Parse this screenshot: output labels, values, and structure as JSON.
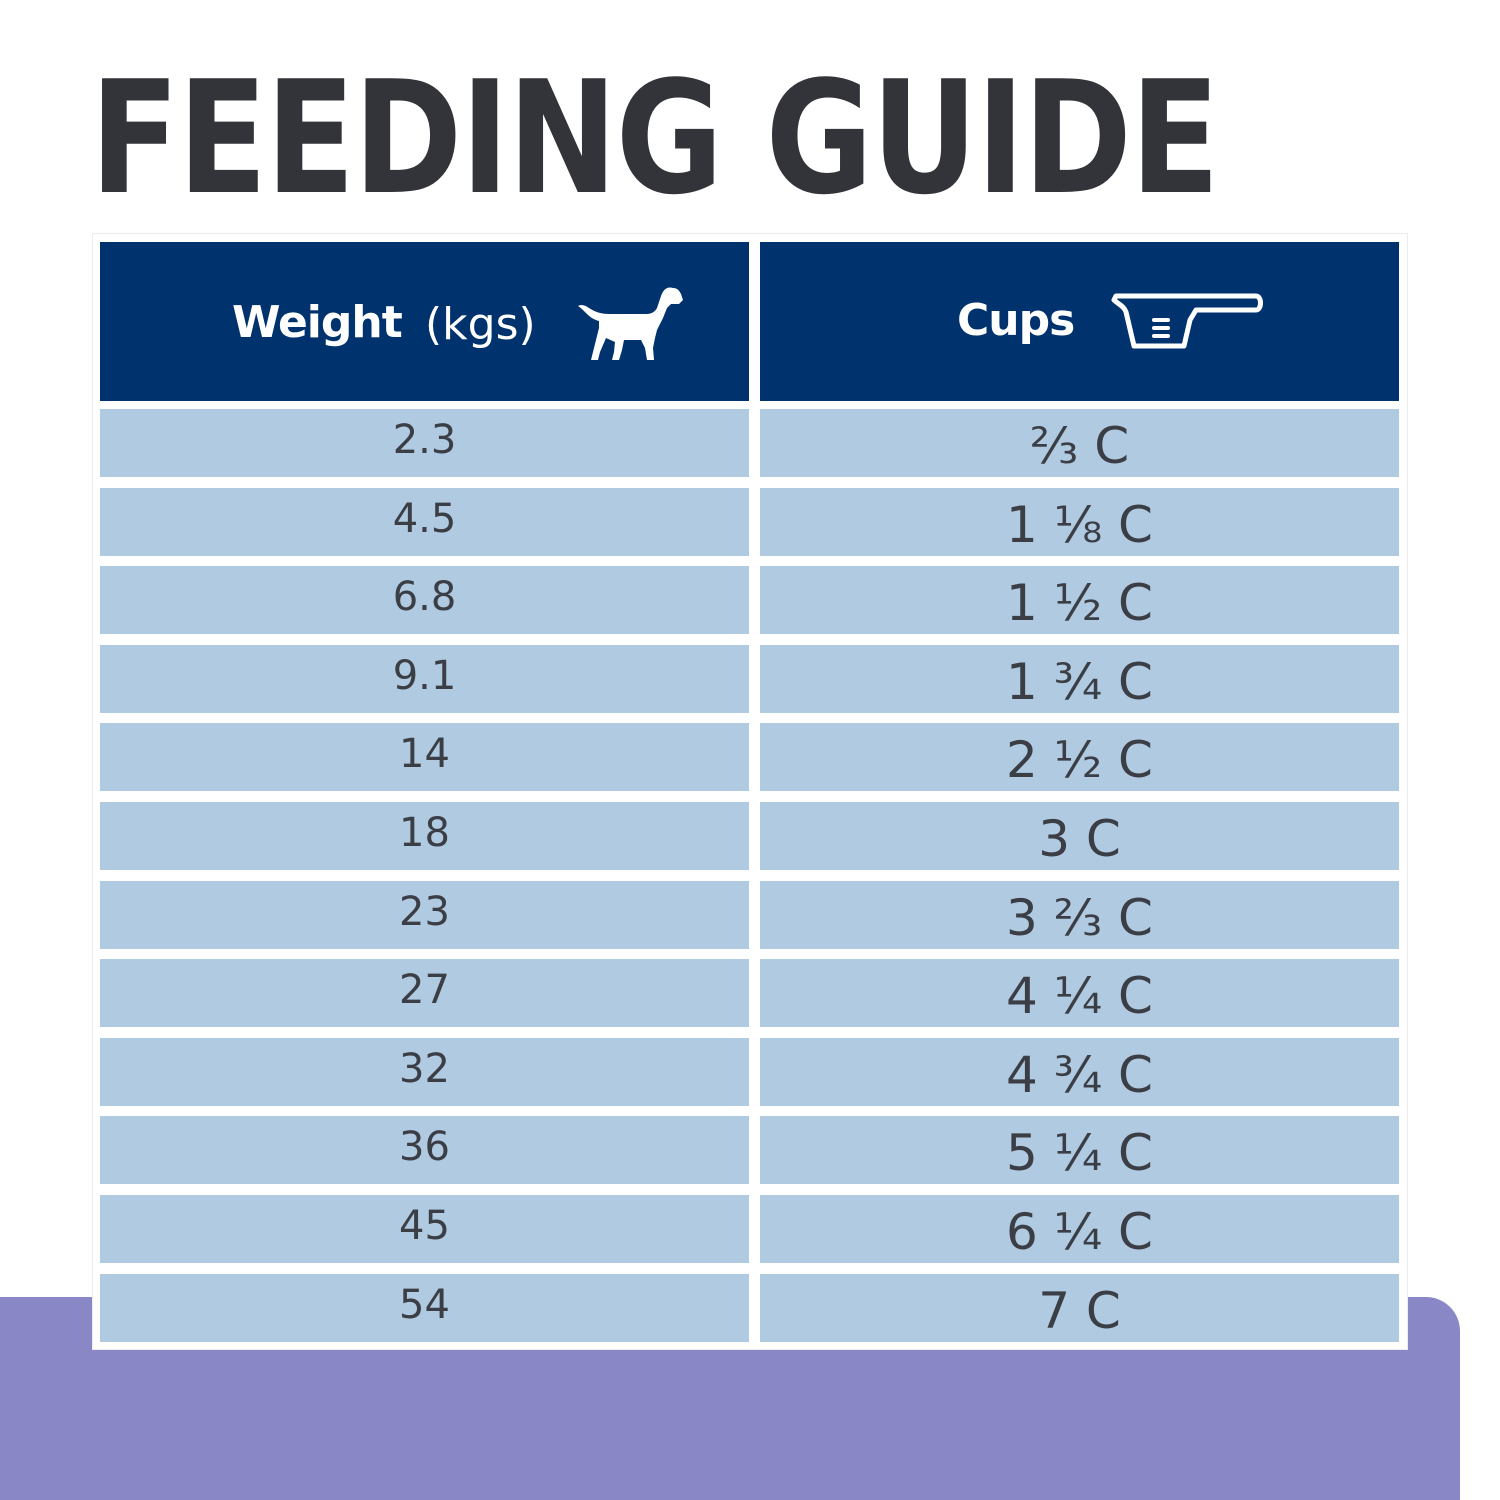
{
  "title": "FEEDING GUIDE",
  "header": {
    "weight_label": "Weight",
    "weight_unit": "(kgs)",
    "weight_icon": "dog-icon",
    "cups_label": "Cups",
    "cups_icon": "measuring-cup-icon"
  },
  "colors": {
    "title_text": "#33343a",
    "header_bg": "#00336e",
    "row_bg": "#b0cae2",
    "accent_purple": "#8a87c7"
  },
  "rows": [
    {
      "weight": "2.3",
      "cups": "⅔ C"
    },
    {
      "weight": "4.5",
      "cups": "1 ⅛ C"
    },
    {
      "weight": "6.8",
      "cups": "1 ½ C"
    },
    {
      "weight": "9.1",
      "cups": "1 ¾ C"
    },
    {
      "weight": "14",
      "cups": "2 ½ C"
    },
    {
      "weight": "18",
      "cups": "3 C"
    },
    {
      "weight": "23",
      "cups": "3 ⅔ C"
    },
    {
      "weight": "27",
      "cups": "4 ¼ C"
    },
    {
      "weight": "32",
      "cups": "4 ¾ C"
    },
    {
      "weight": "36",
      "cups": "5 ¼ C"
    },
    {
      "weight": "45",
      "cups": "6 ¼ C"
    },
    {
      "weight": "54",
      "cups": "7 C"
    }
  ]
}
